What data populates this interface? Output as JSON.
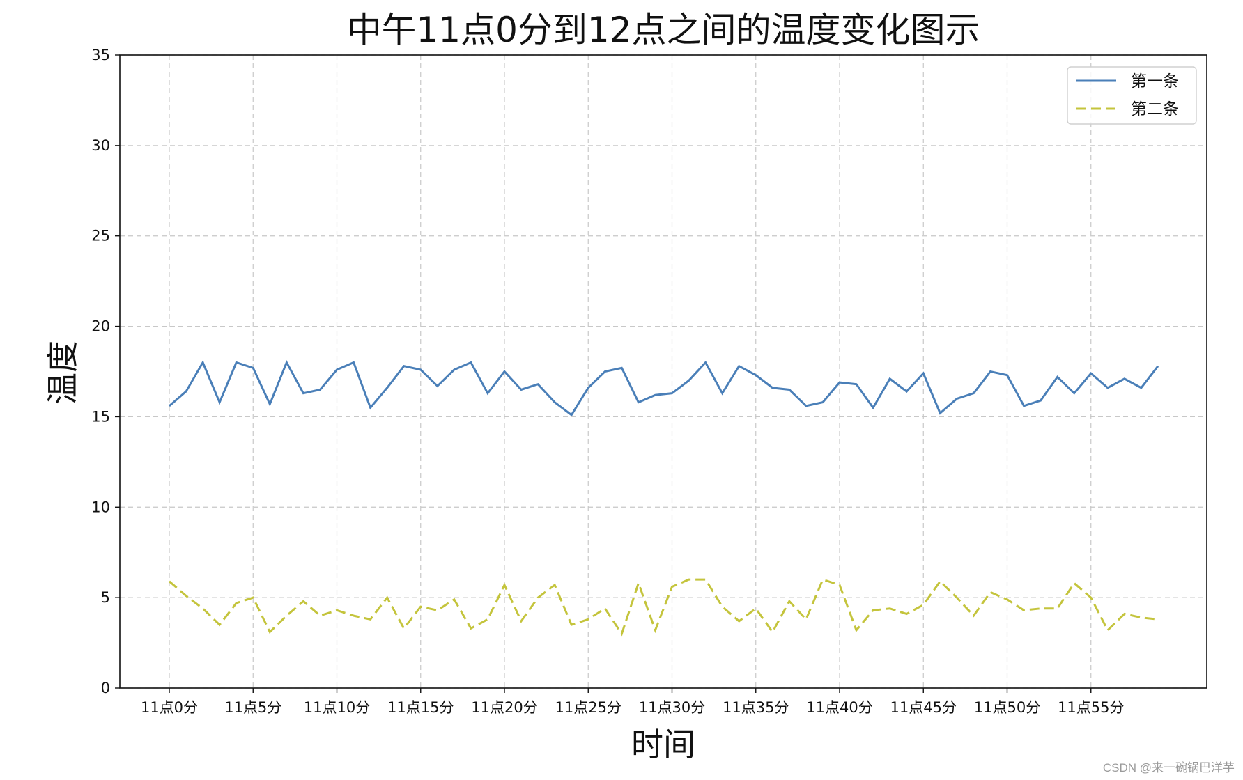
{
  "chart_data": {
    "type": "line",
    "title": "中午11点0分到12点之间的温度变化图示",
    "xlabel": "时间",
    "ylabel": "温度",
    "x": [
      0,
      1,
      2,
      3,
      4,
      5,
      6,
      7,
      8,
      9,
      10,
      11,
      12,
      13,
      14,
      15,
      16,
      17,
      18,
      19,
      20,
      21,
      22,
      23,
      24,
      25,
      26,
      27,
      28,
      29,
      30,
      31,
      32,
      33,
      34,
      35,
      36,
      37,
      38,
      39,
      40,
      41,
      42,
      43,
      44,
      45,
      46,
      47,
      48,
      49,
      50,
      51,
      52,
      53,
      54,
      55,
      56,
      57,
      58,
      59
    ],
    "xticks": [
      0,
      5,
      10,
      15,
      20,
      25,
      30,
      35,
      40,
      45,
      50,
      55
    ],
    "xtick_labels": [
      "11点0分",
      "11点5分",
      "11点10分",
      "11点15分",
      "11点20分",
      "11点25分",
      "11点30分",
      "11点35分",
      "11点40分",
      "11点45分",
      "11点50分",
      "11点55分"
    ],
    "ylim": [
      0,
      35
    ],
    "yticks": [
      0,
      5,
      10,
      15,
      20,
      25,
      30,
      35
    ],
    "grid": true,
    "legend_position": "top-right",
    "series": [
      {
        "name": "第一条",
        "color": "#4a7fb8",
        "style": "solid",
        "values": [
          15.6,
          16.4,
          18.0,
          15.8,
          18.0,
          17.7,
          15.7,
          18.0,
          16.3,
          16.5,
          17.6,
          18.0,
          15.5,
          16.6,
          17.8,
          17.6,
          16.7,
          17.6,
          18.0,
          16.3,
          17.5,
          16.5,
          16.8,
          15.8,
          15.1,
          16.6,
          17.5,
          17.7,
          15.8,
          16.2,
          16.3,
          17.0,
          18.0,
          16.3,
          17.8,
          17.3,
          16.6,
          16.5,
          15.6,
          15.8,
          16.9,
          16.8,
          15.5,
          17.1,
          16.4,
          17.4,
          15.2,
          16.0,
          16.3,
          17.5,
          17.3,
          15.6,
          15.9,
          17.2,
          16.3,
          17.4,
          16.6,
          17.1,
          16.6,
          17.8
        ]
      },
      {
        "name": "第二条",
        "color": "#c4c43c",
        "style": "dashed",
        "values": [
          5.9,
          5.1,
          4.4,
          3.5,
          4.7,
          5.0,
          3.1,
          4.0,
          4.8,
          4.0,
          4.3,
          4.0,
          3.8,
          5.0,
          3.3,
          4.5,
          4.3,
          4.9,
          3.3,
          3.8,
          5.7,
          3.7,
          5.0,
          5.7,
          3.5,
          3.8,
          4.4,
          3.0,
          5.8,
          3.2,
          5.6,
          6.0,
          6.0,
          4.5,
          3.7,
          4.4,
          3.1,
          4.8,
          3.8,
          6.0,
          5.7,
          3.2,
          4.3,
          4.4,
          4.1,
          4.6,
          5.9,
          5.0,
          4.0,
          5.3,
          4.9,
          4.3,
          4.4,
          4.4,
          5.8,
          5.0,
          3.2,
          4.1,
          3.9,
          3.8
        ]
      }
    ]
  },
  "watermark": "CSDN @来一碗锅巴洋芋"
}
